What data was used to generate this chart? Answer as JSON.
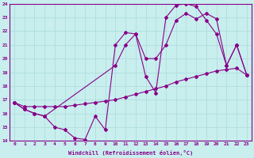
{
  "xlabel": "Windchill (Refroidissement éolien,°C)",
  "xlim": [
    -0.5,
    23.5
  ],
  "ylim": [
    14,
    24
  ],
  "xticks": [
    0,
    1,
    2,
    3,
    4,
    5,
    6,
    7,
    8,
    9,
    10,
    11,
    12,
    13,
    14,
    15,
    16,
    17,
    18,
    19,
    20,
    21,
    22,
    23
  ],
  "yticks": [
    14,
    15,
    16,
    17,
    18,
    19,
    20,
    21,
    22,
    23,
    24
  ],
  "background_color": "#c8eeee",
  "grid_color": "#b0dede",
  "line_color": "#880088",
  "lines": [
    {
      "x": [
        0,
        1,
        2,
        3,
        4,
        5,
        6,
        7,
        8,
        9,
        10,
        11,
        12,
        13,
        14,
        15,
        16,
        17,
        18,
        19,
        20,
        21,
        22,
        23
      ],
      "y": [
        16.8,
        16.3,
        16.0,
        15.8,
        15.0,
        14.8,
        14.2,
        14.1,
        15.8,
        14.8,
        21.0,
        21.9,
        21.8,
        18.7,
        17.5,
        23.0,
        23.9,
        24.0,
        23.8,
        22.8,
        21.8,
        19.5,
        21.0,
        18.8
      ]
    },
    {
      "x": [
        0,
        1,
        2,
        3,
        4,
        5,
        6,
        7,
        8,
        9,
        10,
        11,
        12,
        13,
        14,
        15,
        16,
        17,
        18,
        19,
        20,
        21,
        22,
        23
      ],
      "y": [
        16.8,
        16.5,
        16.5,
        16.5,
        16.5,
        16.5,
        16.6,
        16.7,
        16.8,
        16.9,
        17.0,
        17.2,
        17.4,
        17.6,
        17.8,
        18.0,
        18.3,
        18.5,
        18.7,
        18.9,
        19.1,
        19.2,
        19.3,
        18.8
      ]
    },
    {
      "x": [
        0,
        1,
        2,
        3,
        10,
        11,
        12,
        13,
        14,
        15,
        16,
        17,
        18,
        19,
        20,
        21,
        22,
        23
      ],
      "y": [
        16.8,
        16.3,
        16.0,
        15.8,
        19.5,
        21.0,
        21.8,
        20.0,
        20.0,
        21.0,
        22.8,
        23.3,
        22.9,
        23.3,
        22.9,
        19.5,
        21.0,
        18.8
      ]
    }
  ]
}
